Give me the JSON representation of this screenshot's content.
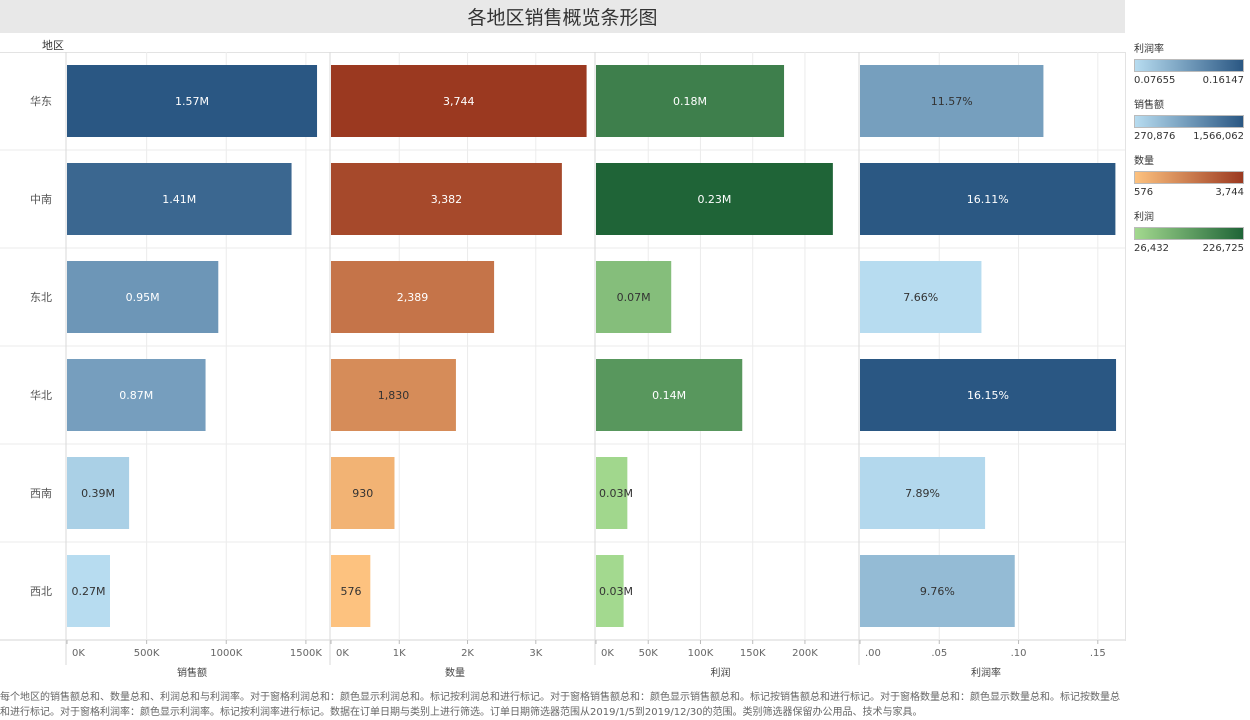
{
  "title": "各地区销售概览条形图",
  "row_header": "地区",
  "chart_data": {
    "type": "bar",
    "orientation": "horizontal",
    "categories": [
      "华东",
      "中南",
      "东北",
      "华北",
      "西南",
      "西北"
    ],
    "panels": [
      {
        "name": "销售额",
        "values": [
          1570000,
          1410000,
          950000,
          870000,
          390000,
          270000
        ],
        "labels": [
          "1.57M",
          "1.41M",
          "0.95M",
          "0.87M",
          "0.39M",
          "0.27M"
        ],
        "ticks": [
          "0K",
          "500K",
          "1000K",
          "1500K"
        ],
        "tick_values": [
          0,
          500000,
          1000000,
          1500000
        ],
        "xlim": [
          0,
          1620000
        ],
        "color_by": "销售额"
      },
      {
        "name": "数量",
        "values": [
          3744,
          3382,
          2389,
          1830,
          930,
          576
        ],
        "labels": [
          "3,744",
          "3,382",
          "2,389",
          "1,830",
          "930",
          "576"
        ],
        "ticks": [
          "0K",
          "1K",
          "2K",
          "3K"
        ],
        "tick_values": [
          0,
          1000,
          2000,
          3000
        ],
        "xlim": [
          0,
          3750
        ],
        "color_by": "数量"
      },
      {
        "name": "利润",
        "values": [
          180000,
          226725,
          72000,
          140000,
          30000,
          26432
        ],
        "labels": [
          "0.18M",
          "0.23M",
          "0.07M",
          "0.14M",
          "0.03M",
          "0.03M"
        ],
        "ticks": [
          "0K",
          "50K",
          "100K",
          "150K",
          "200K"
        ],
        "tick_values": [
          0,
          50000,
          100000,
          150000,
          200000
        ],
        "xlim": [
          0,
          246000
        ],
        "color_by": "利润"
      },
      {
        "name": "利润率",
        "values": [
          0.1157,
          0.1611,
          0.0766,
          0.1615,
          0.0789,
          0.0976
        ],
        "labels": [
          "11.57%",
          "16.11%",
          "7.66%",
          "16.15%",
          "7.89%",
          "9.76%"
        ],
        "ticks": [
          ".00",
          ".05",
          ".10",
          ".15"
        ],
        "tick_values": [
          0,
          0.05,
          0.1,
          0.15
        ],
        "xlim": [
          0,
          0.164
        ],
        "color_by": "利润率"
      }
    ]
  },
  "legends": [
    {
      "title": "利润率",
      "min": "0.07655",
      "max": "0.16147",
      "min_value": 0.07655,
      "max_value": 0.16147,
      "from": "#b7dcf0",
      "to": "#2a5783"
    },
    {
      "title": "销售额",
      "min": "270,876",
      "max": "1,566,062",
      "min_value": 270876,
      "max_value": 1566062,
      "from": "#b7dcf0",
      "to": "#2a5783"
    },
    {
      "title": "数量",
      "min": "576",
      "max": "3,744",
      "min_value": 576,
      "max_value": 3744,
      "from": "#fdc27f",
      "to": "#9b3920"
    },
    {
      "title": "利润",
      "min": "26,432",
      "max": "226,725",
      "min_value": 26432,
      "max_value": 226725,
      "from": "#a3d98f",
      "to": "#1f6437"
    }
  ],
  "footer": "每个地区的销售额总和、数量总和、利润总和与利润率。对于窗格利润总和：颜色显示利润总和。标记按利润总和进行标记。对于窗格销售额总和：颜色显示销售额总和。标记按销售额总和进行标记。对于窗格数量总和：颜色显示数量总和。标记按数量总和进行标记。对于窗格利润率：颜色显示利润率。标记按利润率进行标记。数据在订单日期与类别上进行筛选。订单日期筛选器范围从2019/1/5到2019/12/30的范围。类别筛选器保留办公用品、技术与家具。"
}
